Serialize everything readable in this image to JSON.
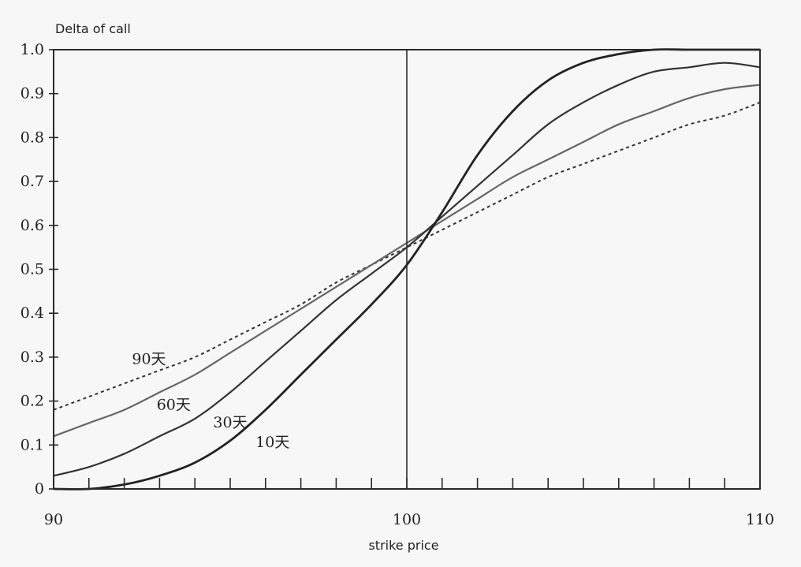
{
  "chart_data": {
    "type": "line",
    "title": "",
    "ylabel": "Delta of call",
    "xlabel": "strike price",
    "xlim": [
      90,
      110
    ],
    "ylim": [
      0,
      1.0
    ],
    "x_ticks": [
      90,
      100,
      110
    ],
    "x_tick_labels": [
      "90",
      "100",
      "110"
    ],
    "y_ticks": [
      0,
      0.1,
      0.2,
      0.3,
      0.4,
      0.5,
      0.6,
      0.7,
      0.8,
      0.9,
      1.0
    ],
    "y_tick_labels": [
      "0",
      "0.1",
      "0.2",
      "0.3",
      "0.4",
      "0.5",
      "0.6",
      "0.7",
      "0.8",
      "0.9",
      "1.0"
    ],
    "vertical_reference_x": 100,
    "grid": false,
    "x": [
      90,
      91,
      92,
      93,
      94,
      95,
      96,
      97,
      98,
      99,
      100,
      101,
      102,
      103,
      104,
      105,
      106,
      107,
      108,
      109,
      110
    ],
    "series": [
      {
        "name": "90天",
        "style": "dashed",
        "color": "#333333",
        "values": [
          0.18,
          0.21,
          0.24,
          0.27,
          0.3,
          0.34,
          0.38,
          0.42,
          0.47,
          0.51,
          0.55,
          0.59,
          0.63,
          0.67,
          0.71,
          0.74,
          0.77,
          0.8,
          0.83,
          0.85,
          0.88
        ]
      },
      {
        "name": "60天",
        "style": "solid",
        "color": "#666666",
        "values": [
          0.12,
          0.15,
          0.18,
          0.22,
          0.26,
          0.31,
          0.36,
          0.41,
          0.46,
          0.51,
          0.56,
          0.61,
          0.66,
          0.71,
          0.75,
          0.79,
          0.83,
          0.86,
          0.89,
          0.91,
          0.92
        ]
      },
      {
        "name": "30天",
        "style": "solid",
        "color": "#333333",
        "values": [
          0.03,
          0.05,
          0.08,
          0.12,
          0.16,
          0.22,
          0.29,
          0.36,
          0.43,
          0.49,
          0.55,
          0.62,
          0.69,
          0.76,
          0.83,
          0.88,
          0.92,
          0.95,
          0.96,
          0.97,
          0.96
        ]
      },
      {
        "name": "10天",
        "style": "solid",
        "color": "#222222",
        "values": [
          0.0,
          0.0,
          0.01,
          0.03,
          0.06,
          0.11,
          0.18,
          0.26,
          0.34,
          0.42,
          0.51,
          0.63,
          0.76,
          0.86,
          0.93,
          0.97,
          0.99,
          1.0,
          1.0,
          1.0,
          1.0
        ]
      }
    ]
  }
}
